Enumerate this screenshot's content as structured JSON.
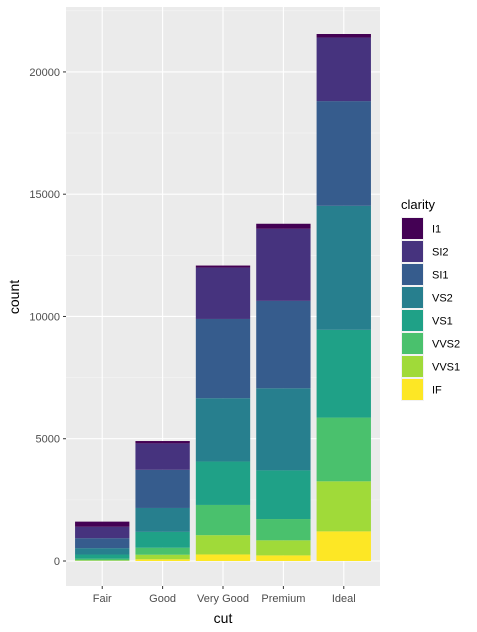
{
  "chart_data": {
    "type": "bar",
    "stacked": true,
    "title": "",
    "xlabel": "cut",
    "ylabel": "count",
    "categories": [
      "Fair",
      "Good",
      "Very Good",
      "Premium",
      "Ideal"
    ],
    "ylim": [
      0,
      21551
    ],
    "yticks": [
      0,
      5000,
      10000,
      15000,
      20000
    ],
    "ytick_labels": [
      "0",
      "5000",
      "10000",
      "15000",
      "20000"
    ],
    "grid": true,
    "legend": {
      "title": "clarity",
      "position": "right"
    },
    "series": [
      {
        "name": "I1",
        "color": "#440154",
        "values": [
          210,
          96,
          84,
          205,
          146
        ]
      },
      {
        "name": "SI2",
        "color": "#46337E",
        "values": [
          466,
          1081,
          2100,
          2949,
          2598
        ]
      },
      {
        "name": "SI1",
        "color": "#365C8D",
        "values": [
          408,
          1560,
          3240,
          3575,
          4282
        ]
      },
      {
        "name": "VS2",
        "color": "#277F8E",
        "values": [
          261,
          978,
          2591,
          3357,
          5071
        ]
      },
      {
        "name": "VS1",
        "color": "#1FA187",
        "values": [
          170,
          648,
          1775,
          1989,
          3589
        ]
      },
      {
        "name": "VVS2",
        "color": "#4AC16D",
        "values": [
          69,
          286,
          1235,
          870,
          2606
        ]
      },
      {
        "name": "VVS1",
        "color": "#A0DA39",
        "values": [
          17,
          186,
          789,
          616,
          2047
        ]
      },
      {
        "name": "IF",
        "color": "#FDE725",
        "values": [
          9,
          71,
          268,
          230,
          1212
        ]
      }
    ]
  }
}
